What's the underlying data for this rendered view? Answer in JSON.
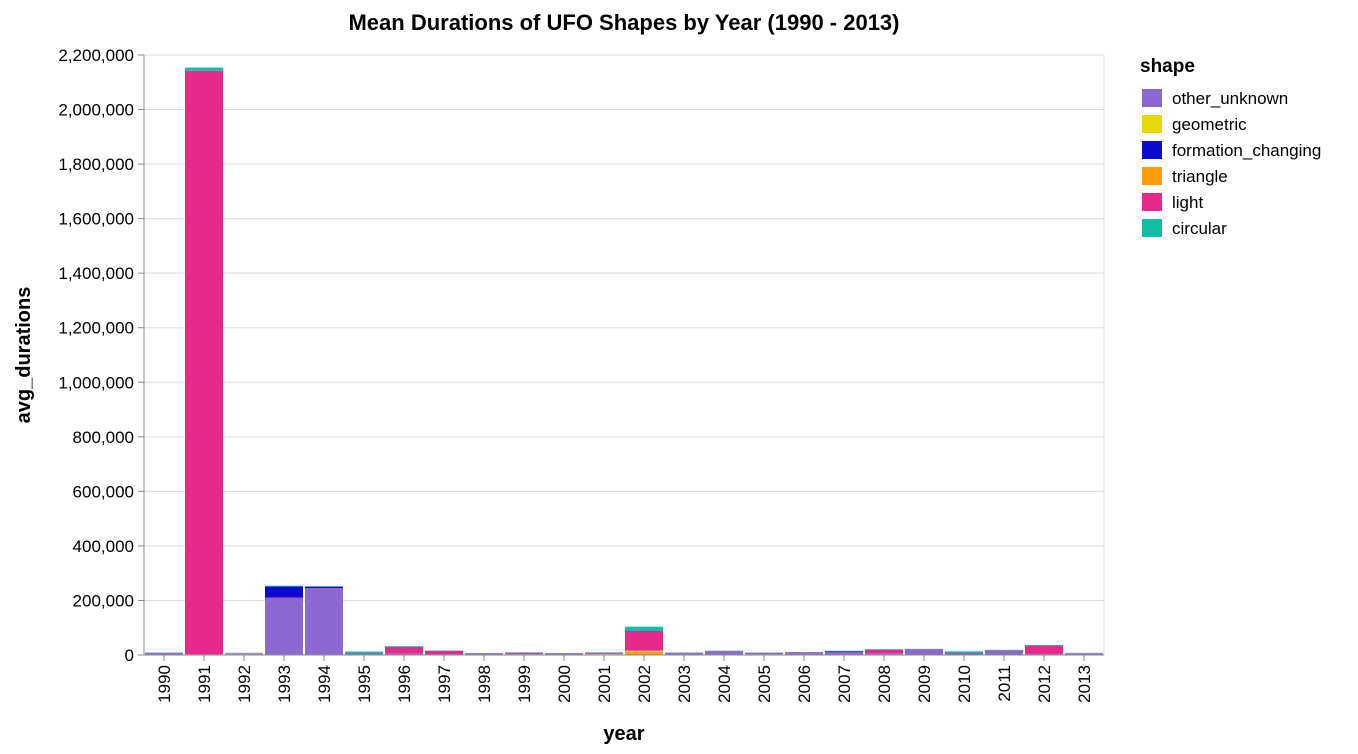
{
  "chart_data": {
    "type": "bar",
    "stacked": true,
    "title": "Mean Durations of UFO Shapes by Year (1990 - 2013)",
    "xlabel": "year",
    "ylabel": "avg_durations",
    "ylim": [
      0,
      2200000
    ],
    "yticks": [
      0,
      200000,
      400000,
      600000,
      800000,
      1000000,
      1200000,
      1400000,
      1600000,
      1800000,
      2000000,
      2200000
    ],
    "ytick_labels": [
      "0",
      "200,000",
      "400,000",
      "600,000",
      "800,000",
      "1,000,000",
      "1,200,000",
      "1,400,000",
      "1,600,000",
      "1,800,000",
      "2,000,000",
      "2,200,000"
    ],
    "grid": true,
    "legend": {
      "title": "shape",
      "position": "right"
    },
    "categories": [
      "1990",
      "1991",
      "1992",
      "1993",
      "1994",
      "1995",
      "1996",
      "1997",
      "1998",
      "1999",
      "2000",
      "2001",
      "2002",
      "2003",
      "2004",
      "2005",
      "2006",
      "2007",
      "2008",
      "2009",
      "2010",
      "2011",
      "2012",
      "2013"
    ],
    "series": [
      {
        "name": "triangle",
        "color": "#ff9e0a",
        "values": [
          1000,
          1000,
          2000,
          1500,
          1500,
          1000,
          1500,
          1000,
          1500,
          2000,
          1500,
          3000,
          14000,
          1500,
          1500,
          2000,
          1500,
          1500,
          1500,
          1000,
          1000,
          1000,
          1500,
          1000
        ]
      },
      {
        "name": "geometric",
        "color": "#e5d80b",
        "values": [
          500,
          500,
          500,
          500,
          500,
          500,
          500,
          500,
          500,
          500,
          500,
          500,
          1000,
          500,
          500,
          500,
          500,
          500,
          500,
          500,
          500,
          500,
          500,
          500
        ]
      },
      {
        "name": "other_unknown",
        "color": "#8b68d0",
        "values": [
          5000,
          1000,
          2000,
          207000,
          242000,
          2000,
          2500,
          2000,
          2000,
          3000,
          2000,
          2500,
          2000,
          4000,
          9000,
          3000,
          5000,
          6000,
          4000,
          17000,
          4000,
          10000,
          2000,
          3000
        ]
      },
      {
        "name": "light",
        "color": "#e8288a",
        "values": [
          1000,
          2139000,
          1500,
          2000,
          1500,
          1500,
          24000,
          11000,
          1500,
          2500,
          1500,
          2000,
          70000,
          1500,
          2000,
          1500,
          2000,
          2000,
          13000,
          2000,
          1500,
          3000,
          30000,
          1500
        ]
      },
      {
        "name": "formation_changing",
        "color": "#0a0ad0",
        "values": [
          500,
          500,
          500,
          40000,
          5000,
          500,
          1000,
          500,
          500,
          500,
          500,
          500,
          2000,
          500,
          500,
          500,
          500,
          3000,
          500,
          500,
          500,
          1000,
          500,
          500
        ]
      },
      {
        "name": "circular",
        "color": "#13bfa3",
        "values": [
          1500,
          12000,
          1500,
          3000,
          2000,
          7000,
          3000,
          1500,
          1500,
          1500,
          1500,
          1500,
          15000,
          1500,
          2500,
          1500,
          1500,
          2500,
          2000,
          1500,
          6000,
          3500,
          2500,
          1500
        ]
      }
    ],
    "legend_order": [
      "other_unknown",
      "geometric",
      "formation_changing",
      "triangle",
      "light",
      "circular"
    ]
  }
}
